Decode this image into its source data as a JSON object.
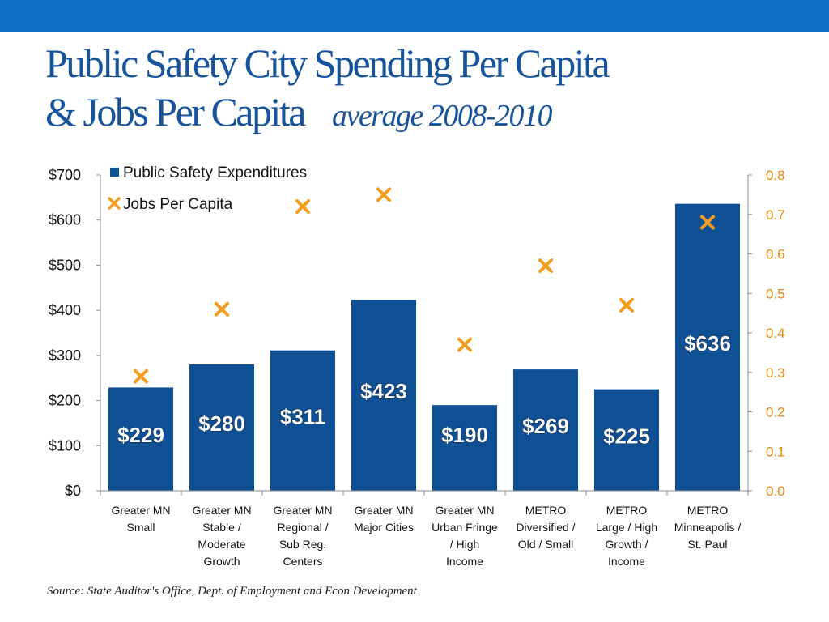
{
  "slide": {
    "title_line1": "Public Safety City Spending Per Capita",
    "title_line2": "& Jobs Per Capita",
    "title_sub": "average 2008-2010",
    "source": "Source: State Auditor's Office, Dept. of Employment and Econ Development"
  },
  "colors": {
    "band": "#0f6fc6",
    "title": "#17549b",
    "bar": "#0f4f94",
    "marker": "#f39c1f",
    "right_axis": "#e8890c"
  },
  "chart_data": {
    "type": "bar",
    "categories": [
      [
        "Greater MN",
        "Small"
      ],
      [
        "Greater MN",
        "Stable /",
        "Moderate",
        "Growth"
      ],
      [
        "Greater MN",
        "Regional /",
        "Sub Reg.",
        "Centers"
      ],
      [
        "Greater MN",
        "Major Cities"
      ],
      [
        "Greater MN",
        "Urban Fringe",
        "/ High",
        "Income"
      ],
      [
        "METRO",
        "Diversified /",
        "Old / Small"
      ],
      [
        "METRO",
        "Large / High",
        "Growth /",
        "Income"
      ],
      [
        "METRO",
        "Minneapolis /",
        "St. Paul"
      ]
    ],
    "series": [
      {
        "name": "Public Safety Expenditures",
        "type": "bar",
        "axis": "left",
        "values": [
          229,
          280,
          311,
          423,
          190,
          269,
          225,
          636
        ],
        "data_labels": [
          "$229",
          "$280",
          "$311",
          "$423",
          "$190",
          "$269",
          "$225",
          "$636"
        ]
      },
      {
        "name": "Jobs Per Capita",
        "type": "scatter",
        "axis": "right",
        "marker": "x",
        "values": [
          0.29,
          0.46,
          0.72,
          0.75,
          0.37,
          0.57,
          0.47,
          0.68
        ]
      }
    ],
    "y_left": {
      "min": 0,
      "max": 700,
      "ticks": [
        "$0",
        "$100",
        "$200",
        "$300",
        "$400",
        "$500",
        "$600",
        "$700"
      ]
    },
    "y_right": {
      "min": 0,
      "max": 0.8,
      "ticks": [
        "0.0",
        "0.1",
        "0.2",
        "0.3",
        "0.4",
        "0.5",
        "0.6",
        "0.7",
        "0.8"
      ]
    },
    "legend_position": "top-left inside plot",
    "grid": false
  }
}
